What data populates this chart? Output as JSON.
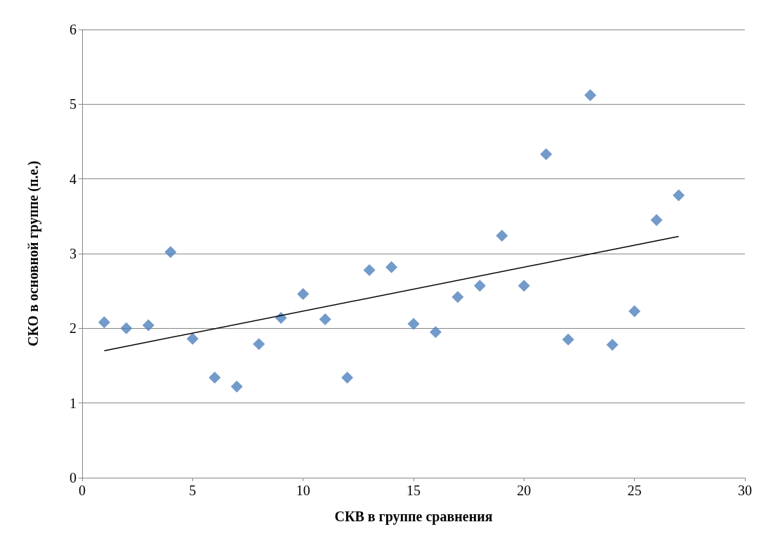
{
  "chart_data": {
    "type": "scatter",
    "xlabel": "СКВ в группе сравнения",
    "ylabel": "СКО в основной группе (п.е.)",
    "xlim": [
      0,
      30
    ],
    "xticks": [
      0,
      5,
      10,
      15,
      20,
      25,
      30
    ],
    "ylim": [
      0,
      6
    ],
    "yticks": [
      0,
      1,
      2,
      3,
      4,
      5,
      6
    ],
    "grid": "y",
    "marker": "diamond",
    "series": [
      {
        "color": "#4f81bd",
        "x": [
          1,
          2,
          3,
          4,
          5,
          6,
          7,
          8,
          9,
          10,
          11,
          12,
          13,
          14,
          15,
          16,
          17,
          18,
          19,
          20,
          21,
          22,
          23,
          24,
          25,
          26,
          27
        ],
        "values": [
          2.08,
          2.0,
          2.04,
          3.02,
          1.86,
          1.34,
          1.22,
          1.79,
          2.14,
          2.46,
          2.12,
          1.34,
          2.78,
          2.82,
          2.06,
          1.95,
          2.42,
          2.57,
          3.24,
          2.57,
          4.33,
          1.85,
          5.12,
          1.78,
          2.23,
          3.45,
          3.78
        ]
      },
      {
        "type": "line",
        "color": "#000000",
        "marker": "none",
        "line_style": "solid",
        "x": [
          1,
          27
        ],
        "values": [
          1.7,
          3.23
        ]
      }
    ]
  }
}
